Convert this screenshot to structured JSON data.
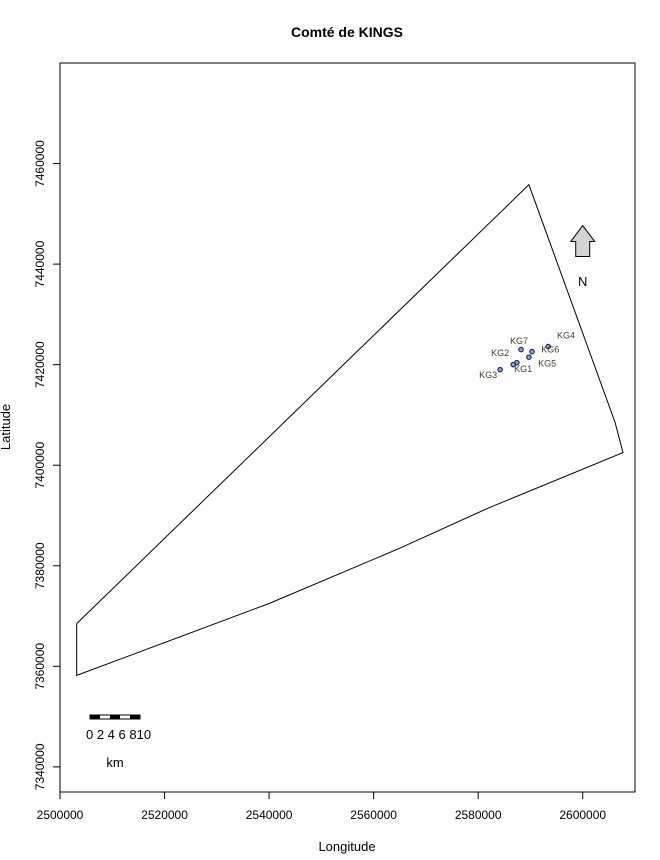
{
  "title": "Comté de KINGS",
  "x_axis": {
    "label": "Longitude",
    "range": [
      2500000,
      2610000
    ],
    "ticks": [
      "2500000",
      "2520000",
      "2540000",
      "2560000",
      "2580000",
      "2600000"
    ]
  },
  "y_axis": {
    "label": "Latitude",
    "range": [
      7335000,
      7480000
    ],
    "ticks": [
      "7340000",
      "7360000",
      "7380000",
      "7400000",
      "7420000",
      "7440000",
      "7460000"
    ]
  },
  "county_boundary": [
    [
      2503200,
      7368500
    ],
    [
      2503200,
      7358200
    ],
    [
      2540000,
      7372500
    ],
    [
      2565000,
      7383500
    ],
    [
      2582000,
      7391500
    ],
    [
      2607700,
      7402500
    ],
    [
      2606200,
      7408500
    ],
    [
      2589700,
      7455800
    ],
    [
      2503200,
      7368500
    ]
  ],
  "sites": [
    {
      "label": "KG1",
      "x": 2587400,
      "y": 7420400,
      "label_x": 2588600,
      "label_y": 7418500
    },
    {
      "label": "KG2",
      "x": 2586700,
      "y": 7420000,
      "label_x": 2584200,
      "label_y": 7421700
    },
    {
      "label": "KG3",
      "x": 2584200,
      "y": 7419000,
      "label_x": 2581900,
      "label_y": 7417300
    },
    {
      "label": "KG4",
      "x": 2593400,
      "y": 7423600,
      "label_x": 2596800,
      "label_y": 7425200
    },
    {
      "label": "KG5",
      "x": 2589700,
      "y": 7421500,
      "label_x": 2593200,
      "label_y": 7419600
    },
    {
      "label": "KG6",
      "x": 2590300,
      "y": 7422600,
      "label_x": 2593800,
      "label_y": 7422400
    },
    {
      "label": "KG7",
      "x": 2588200,
      "y": 7423000,
      "label_x": 2587800,
      "label_y": 7424100
    }
  ],
  "north_arrow": {
    "label": "N",
    "x": 2600000,
    "y": 7441500
  },
  "scale_bar": {
    "labels": "0 2 4 6 810",
    "unit": "km"
  },
  "colors": {
    "site_point": "#1c2a6b",
    "site_point_fill": "#8fa6cc",
    "north_arrow_fill": "#d3d3d3"
  }
}
